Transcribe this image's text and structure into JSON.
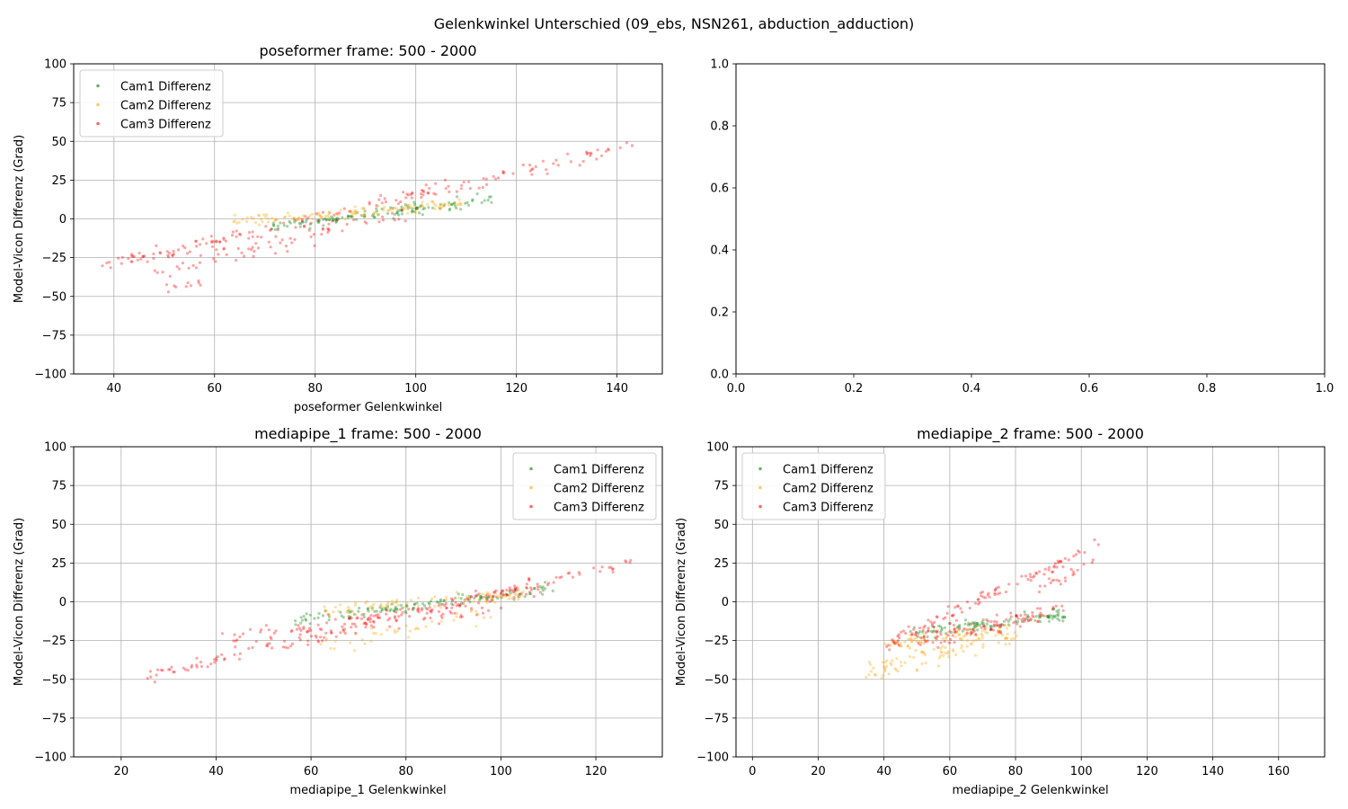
{
  "figure": {
    "suptitle": "Gelenkwinkel Unterschied (09_ebs, NSN261, abduction_adduction)"
  },
  "colors": {
    "cam1": "#008000",
    "cam2": "#FFA500",
    "cam3": "#FF0000",
    "grid": "#b0b0b0"
  },
  "chart_data": [
    {
      "id": "poseformer",
      "type": "scatter",
      "title": "poseformer frame: 500 - 2000",
      "xlabel": "poseformer Gelenkwinkel",
      "ylabel": "Model-Vicon Differenz (Grad)",
      "xlim": [
        32,
        149
      ],
      "ylim": [
        -100,
        100
      ],
      "xticks": [
        40,
        60,
        80,
        100,
        120,
        140
      ],
      "yticks": [
        -100,
        -75,
        -50,
        -25,
        0,
        25,
        50,
        75,
        100
      ],
      "grid": true,
      "legend_loc": "upper left",
      "series": [
        {
          "name": "Cam1 Differenz",
          "color_key": "cam1",
          "marker": "x",
          "segments": [
            [
              [
                70,
                -5
              ],
              [
                115,
                12
              ],
              0.09,
              2.5,
              130
            ]
          ]
        },
        {
          "name": "Cam2 Differenz",
          "color_key": "cam2",
          "marker": "x",
          "segments": [
            [
              [
                64,
                -2
              ],
              [
                110,
                10
              ],
              0.05,
              2.5,
              120
            ]
          ]
        },
        {
          "name": "Cam3 Differenz",
          "color_key": "cam3",
          "marker": "o",
          "segments": [
            [
              [
                38,
                -30
              ],
              [
                143,
                47
              ],
              0.09,
              3,
              160
            ],
            [
              [
                48,
                -35
              ],
              [
                85,
                -8
              ],
              0.09,
              4,
              40
            ],
            [
              [
                46,
                -26
              ],
              [
                100,
                4
              ],
              0.13,
              5,
              45
            ],
            [
              [
                50,
                -44
              ],
              [
                58,
                -40
              ],
              0.03,
              2,
              10
            ]
          ]
        }
      ]
    },
    {
      "id": "empty",
      "type": "scatter",
      "title": "",
      "xlabel": "",
      "ylabel": "",
      "xlim": [
        0,
        1
      ],
      "ylim": [
        0,
        1
      ],
      "xticks": [
        0.0,
        0.2,
        0.4,
        0.6,
        0.8,
        1.0
      ],
      "yticks": [
        0.0,
        0.2,
        0.4,
        0.6,
        0.8,
        1.0
      ],
      "tick_decimals": 1,
      "grid": false,
      "series": []
    },
    {
      "id": "mediapipe_1",
      "type": "scatter",
      "title": "mediapipe_1 frame: 500 - 2000",
      "xlabel": "mediapipe_1 Gelenkwinkel",
      "ylabel": "Model-Vicon Differenz (Grad)",
      "xlim": [
        10,
        134
      ],
      "ylim": [
        -100,
        100
      ],
      "xticks": [
        20,
        40,
        60,
        80,
        100,
        120
      ],
      "yticks": [
        -100,
        -75,
        -50,
        -25,
        0,
        25,
        50,
        75,
        100
      ],
      "grid": true,
      "legend_loc": "upper right",
      "series": [
        {
          "name": "Cam1 Differenz",
          "color_key": "cam1",
          "marker": "x",
          "segments": [
            [
              [
                55,
                -12
              ],
              [
                110,
                8
              ],
              0.09,
              2.5,
              130
            ]
          ]
        },
        {
          "name": "Cam2 Differenz",
          "color_key": "cam2",
          "marker": "x",
          "segments": [
            [
              [
                62,
                -5
              ],
              [
                105,
                5
              ],
              0.07,
              3,
              80
            ],
            [
              [
                60,
                -30
              ],
              [
                100,
                -5
              ],
              0.1,
              4,
              40
            ]
          ]
        },
        {
          "name": "Cam3 Differenz",
          "color_key": "cam3",
          "marker": "o",
          "segments": [
            [
              [
                25,
                -48
              ],
              [
                128,
                26
              ],
              0.07,
              3,
              150
            ],
            [
              [
                42,
                -25
              ],
              [
                108,
                8
              ],
              0.12,
              4,
              100
            ],
            [
              [
                60,
                -22
              ],
              [
                100,
                -3
              ],
              0.1,
              4,
              40
            ]
          ]
        }
      ]
    },
    {
      "id": "mediapipe_2",
      "type": "scatter",
      "title": "mediapipe_2 frame: 500 - 2000",
      "xlabel": "mediapipe_2 Gelenkwinkel",
      "ylabel": "Model-Vicon Differenz (Grad)",
      "xlim": [
        -5,
        174
      ],
      "ylim": [
        -100,
        100
      ],
      "xticks": [
        0,
        20,
        40,
        60,
        80,
        100,
        120,
        140,
        160
      ],
      "yticks": [
        -100,
        -75,
        -50,
        -25,
        0,
        25,
        50,
        75,
        100
      ],
      "grid": true,
      "legend_loc": "upper left",
      "series": [
        {
          "name": "Cam1 Differenz",
          "color_key": "cam1",
          "marker": "x",
          "segments": [
            [
              [
                48,
                -20
              ],
              [
                95,
                -8
              ],
              0.09,
              3,
              110
            ]
          ]
        },
        {
          "name": "Cam2 Differenz",
          "color_key": "cam2",
          "marker": "x",
          "segments": [
            [
              [
                35,
                -45
              ],
              [
                80,
                -20
              ],
              0.1,
              5,
              100
            ],
            [
              [
                40,
                -28
              ],
              [
                72,
                -18
              ],
              0.08,
              3,
              60
            ]
          ]
        },
        {
          "name": "Cam3 Differenz",
          "color_key": "cam3",
          "marker": "o",
          "segments": [
            [
              [
                40,
                -28
              ],
              [
                105,
                37
              ],
              0.06,
              3,
              110
            ],
            [
              [
                50,
                -25
              ],
              [
                95,
                -5
              ],
              0.1,
              4,
              100
            ],
            [
              [
                85,
                5
              ],
              [
                104,
                27
              ],
              0.05,
              2,
              20
            ]
          ]
        }
      ]
    }
  ]
}
